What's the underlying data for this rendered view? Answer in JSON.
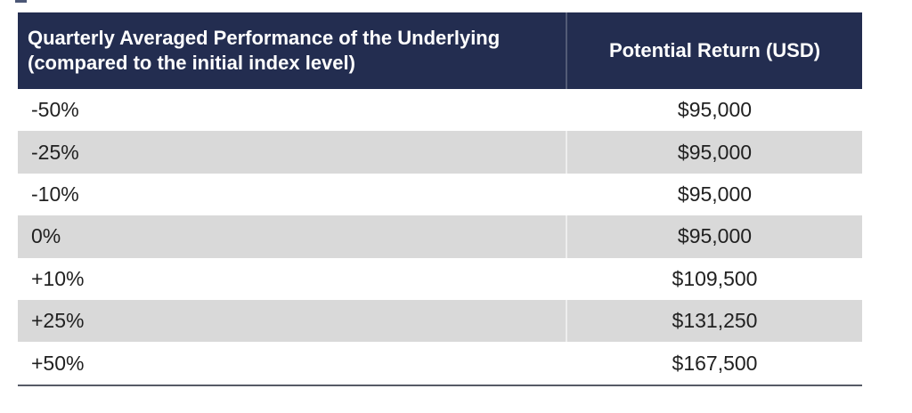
{
  "table": {
    "header": {
      "performance_label_line1": "Quarterly Averaged Performance of the Underlying",
      "performance_label_line2": "(compared to the initial index level)",
      "return_label": "Potential Return (USD)"
    },
    "rows": [
      {
        "performance": "-50%",
        "return_usd": "$95,000"
      },
      {
        "performance": "-25%",
        "return_usd": "$95,000"
      },
      {
        "performance": "-10%",
        "return_usd": "$95,000"
      },
      {
        "performance": "0%",
        "return_usd": "$95,000"
      },
      {
        "performance": "+10%",
        "return_usd": "$109,500"
      },
      {
        "performance": "+25%",
        "return_usd": "$131,250"
      },
      {
        "performance": "+50%",
        "return_usd": "$167,500"
      }
    ],
    "colors": {
      "header_bg": "#232d50",
      "header_text": "#ffffff",
      "row_bg": "#ffffff",
      "row_alt_bg": "#d9d9d9",
      "body_text": "#212121",
      "bottom_border": "#565a66"
    }
  },
  "chart_data": {
    "type": "table",
    "title": "",
    "columns": [
      "Quarterly Averaged Performance of the Underlying (compared to the initial index level)",
      "Potential Return (USD)"
    ],
    "rows": [
      [
        "-50%",
        "$95,000"
      ],
      [
        "-25%",
        "$95,000"
      ],
      [
        "-10%",
        "$95,000"
      ],
      [
        "0%",
        "$95,000"
      ],
      [
        "+10%",
        "$109,500"
      ],
      [
        "+25%",
        "$131,250"
      ],
      [
        "+50%",
        "$167,500"
      ]
    ],
    "layout": {
      "header_style": "dark navy background, white bold text",
      "row_striping": "alternating white / light gray starting white",
      "value_alignment": "left column left-aligned, return column centered",
      "grid": "off, single dark bottom rule"
    }
  }
}
